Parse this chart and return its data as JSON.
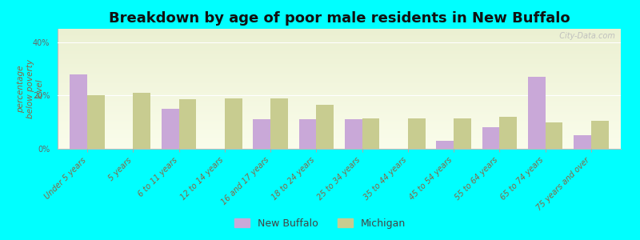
{
  "title": "Breakdown by age of poor male residents in New Buffalo",
  "ylabel": "percentage\nbelow poverty\nlevel",
  "background_color": "#00ffff",
  "categories": [
    "Under 5 years",
    "5 years",
    "6 to 11 years",
    "12 to 14 years",
    "16 and 17 years",
    "18 to 24 years",
    "25 to 34 years",
    "35 to 44 years",
    "45 to 54 years",
    "55 to 64 years",
    "65 to 74 years",
    "75 years and over"
  ],
  "new_buffalo": [
    28.0,
    0.0,
    15.0,
    0.0,
    11.0,
    11.0,
    11.0,
    0.0,
    3.0,
    8.0,
    27.0,
    5.0
  ],
  "michigan": [
    20.0,
    21.0,
    18.5,
    19.0,
    19.0,
    16.5,
    11.5,
    11.5,
    11.5,
    12.0,
    10.0,
    10.5
  ],
  "new_buffalo_color": "#c9a8d8",
  "michigan_color": "#c8cc90",
  "bar_width": 0.38,
  "ylim": [
    0,
    45
  ],
  "yticks": [
    0,
    20,
    40
  ],
  "ytick_labels": [
    "0%",
    "20%",
    "40%"
  ],
  "legend_new_buffalo": "New Buffalo",
  "legend_michigan": "Michigan",
  "title_fontsize": 13,
  "label_fontsize": 7.5,
  "tick_fontsize": 7,
  "watermark": "  City-Data.com"
}
